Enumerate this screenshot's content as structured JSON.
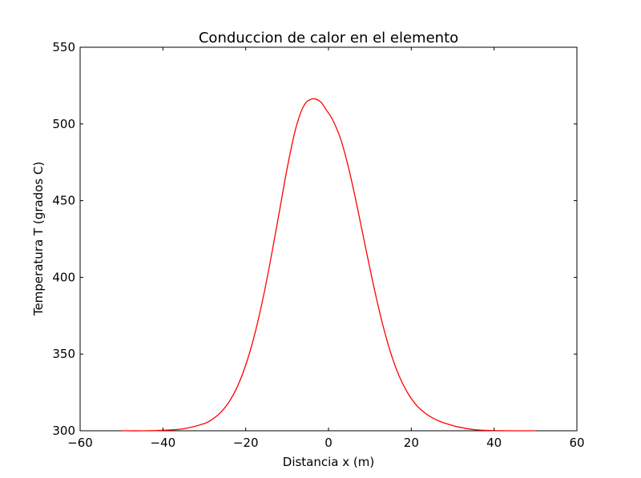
{
  "chart_data": {
    "type": "line",
    "title": "Conduccion de calor en el elemento",
    "xlabel": "Distancia x (m)",
    "ylabel": "Temperatura T (grados C)",
    "xlim": [
      -60,
      60
    ],
    "ylim": [
      300,
      550
    ],
    "xticks": [
      -60,
      -40,
      -20,
      0,
      20,
      40,
      60
    ],
    "xtick_labels": [
      "−60",
      "−40",
      "−20",
      "0",
      "20",
      "40",
      "60"
    ],
    "yticks": [
      300,
      350,
      400,
      450,
      500,
      550
    ],
    "ytick_labels": [
      "300",
      "350",
      "400",
      "450",
      "500",
      "550"
    ],
    "grid": false,
    "series": [
      {
        "color": "#ff0000",
        "x": [
          -50,
          -45,
          -40,
          -35,
          -30,
          -28,
          -26,
          -24,
          -22,
          -20,
          -18,
          -16,
          -14,
          -12,
          -10,
          -8,
          -6,
          -4,
          -2,
          -0.5,
          1,
          3,
          5,
          7,
          9,
          11,
          13,
          15,
          17,
          19,
          21,
          23,
          25,
          27,
          29,
          31,
          35,
          40,
          45,
          50
        ],
        "y": [
          300,
          300,
          300.3,
          301.3,
          304.7,
          307.6,
          312.1,
          318.9,
          328.9,
          342.8,
          361.1,
          384.1,
          411.2,
          440.9,
          470.9,
          496.2,
          511.7,
          516.3,
          514.6,
          509.0,
          502.7,
          489.6,
          469.6,
          445.1,
          418.8,
          393.3,
          370.2,
          351.0,
          336.1,
          325.2,
          317.4,
          312.2,
          308.6,
          306.0,
          304.2,
          302.7,
          300.8,
          300.1,
          300,
          300
        ]
      }
    ]
  }
}
